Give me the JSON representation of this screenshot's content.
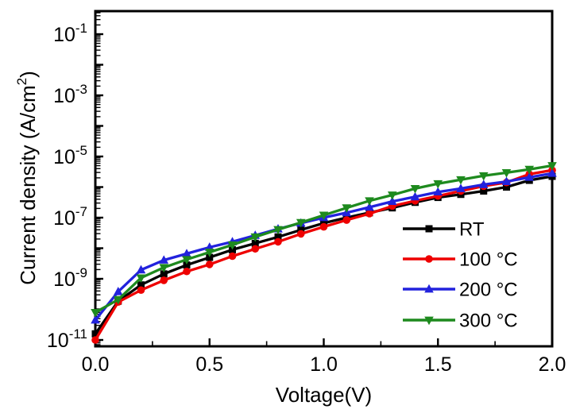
{
  "chart_data": {
    "type": "line",
    "title": "",
    "xlabel": "Voltage(V)",
    "ylabel": "Current density (A/cm²)",
    "x_axis": {
      "min": 0.0,
      "max": 2.0,
      "major_ticks": [
        0.0,
        0.5,
        1.0,
        1.5,
        2.0
      ],
      "major_tick_labels": [
        "0.0",
        "0.5",
        "1.0",
        "1.5",
        "2.0"
      ],
      "minor_ticks": [
        0.25,
        0.75,
        1.25,
        1.75
      ]
    },
    "y_axis": {
      "scale": "log10",
      "unit": "A/cm²",
      "base_label": "10",
      "labeled_exponents": [
        -1,
        -3,
        -5,
        -7,
        -9,
        -11
      ],
      "decade_ticks": [
        -11,
        -10,
        -9,
        -8,
        -7,
        -6,
        -5,
        -4,
        -3,
        -2,
        -1
      ],
      "top_exponent": -0.25,
      "bottom_exponent": -11.2,
      "grid": false
    },
    "x": [
      0.0,
      0.1,
      0.2,
      0.3,
      0.4,
      0.5,
      0.6,
      0.7,
      0.8,
      0.9,
      1.0,
      1.1,
      1.2,
      1.3,
      1.4,
      1.5,
      1.6,
      1.7,
      1.8,
      1.9,
      2.0
    ],
    "series": [
      {
        "name": "RT",
        "color": "#000000",
        "marker": "square",
        "log10_y": [
          -10.8,
          -9.73,
          -9.2,
          -8.84,
          -8.55,
          -8.3,
          -8.05,
          -7.84,
          -7.63,
          -7.4,
          -7.18,
          -7.0,
          -6.84,
          -6.68,
          -6.5,
          -6.34,
          -6.24,
          -6.13,
          -6.0,
          -5.78,
          -5.65
        ]
      },
      {
        "name": "100 °C",
        "color": "#ee0000",
        "marker": "circle",
        "log10_y": [
          -11.0,
          -9.76,
          -9.37,
          -9.05,
          -8.76,
          -8.53,
          -8.26,
          -8.02,
          -7.79,
          -7.53,
          -7.3,
          -7.08,
          -6.87,
          -6.62,
          -6.45,
          -6.29,
          -6.13,
          -5.97,
          -5.85,
          -5.58,
          -5.45
        ]
      },
      {
        "name": "200 °C",
        "color": "#2222dd",
        "marker": "triangle-up",
        "log10_y": [
          -10.35,
          -9.42,
          -8.71,
          -8.39,
          -8.18,
          -7.97,
          -7.79,
          -7.58,
          -7.37,
          -7.18,
          -7.0,
          -6.84,
          -6.66,
          -6.47,
          -6.32,
          -6.16,
          -6.05,
          -5.92,
          -5.82,
          -5.68,
          -5.55
        ]
      },
      {
        "name": "300 °C",
        "color": "#1e8a1e",
        "marker": "triangle-down",
        "log10_y": [
          -10.1,
          -9.68,
          -8.97,
          -8.63,
          -8.37,
          -8.13,
          -7.89,
          -7.63,
          -7.39,
          -7.16,
          -6.92,
          -6.68,
          -6.45,
          -6.26,
          -6.05,
          -5.89,
          -5.76,
          -5.63,
          -5.53,
          -5.42,
          -5.3
        ]
      }
    ],
    "legend": {
      "position": "inside lower right",
      "entries": [
        "RT",
        "100 °C",
        "200 °C",
        "300 °C"
      ]
    }
  },
  "colors": {
    "frame": "#000000",
    "background": "#ffffff"
  }
}
